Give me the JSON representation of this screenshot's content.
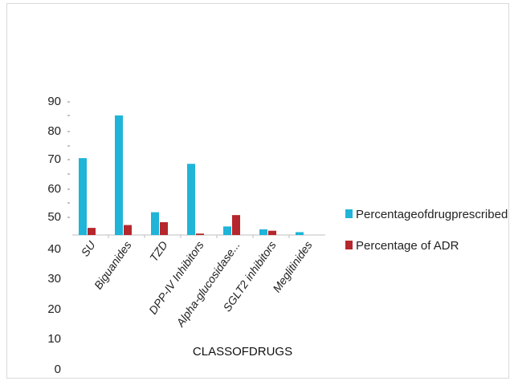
{
  "chart_data": {
    "type": "bar",
    "title": "",
    "xlabel": "CLASSOFDRUGS",
    "ylabel": "",
    "y_ticks": [
      "90",
      "80",
      "70",
      "60",
      "50",
      "40",
      "30",
      "20",
      "10",
      "0"
    ],
    "categories": [
      "SU",
      "Biguanides",
      "TZD",
      "DPP-IV Inhibitors",
      "Alpha-glucosidase...",
      "SGLT2 inhibitors",
      "Meglitinides"
    ],
    "series": [
      {
        "name": "Percentageofdrugprescribed",
        "color": "#1fb4d8",
        "values": [
          71,
          86,
          52,
          69,
          47,
          46,
          45
        ]
      },
      {
        "name": "Percentage of ADR",
        "color": "#b5272d",
        "values": [
          46.5,
          47.5,
          48.5,
          44.5,
          51,
          45.5,
          0
        ]
      }
    ],
    "legend_position": "right",
    "grid": false
  }
}
